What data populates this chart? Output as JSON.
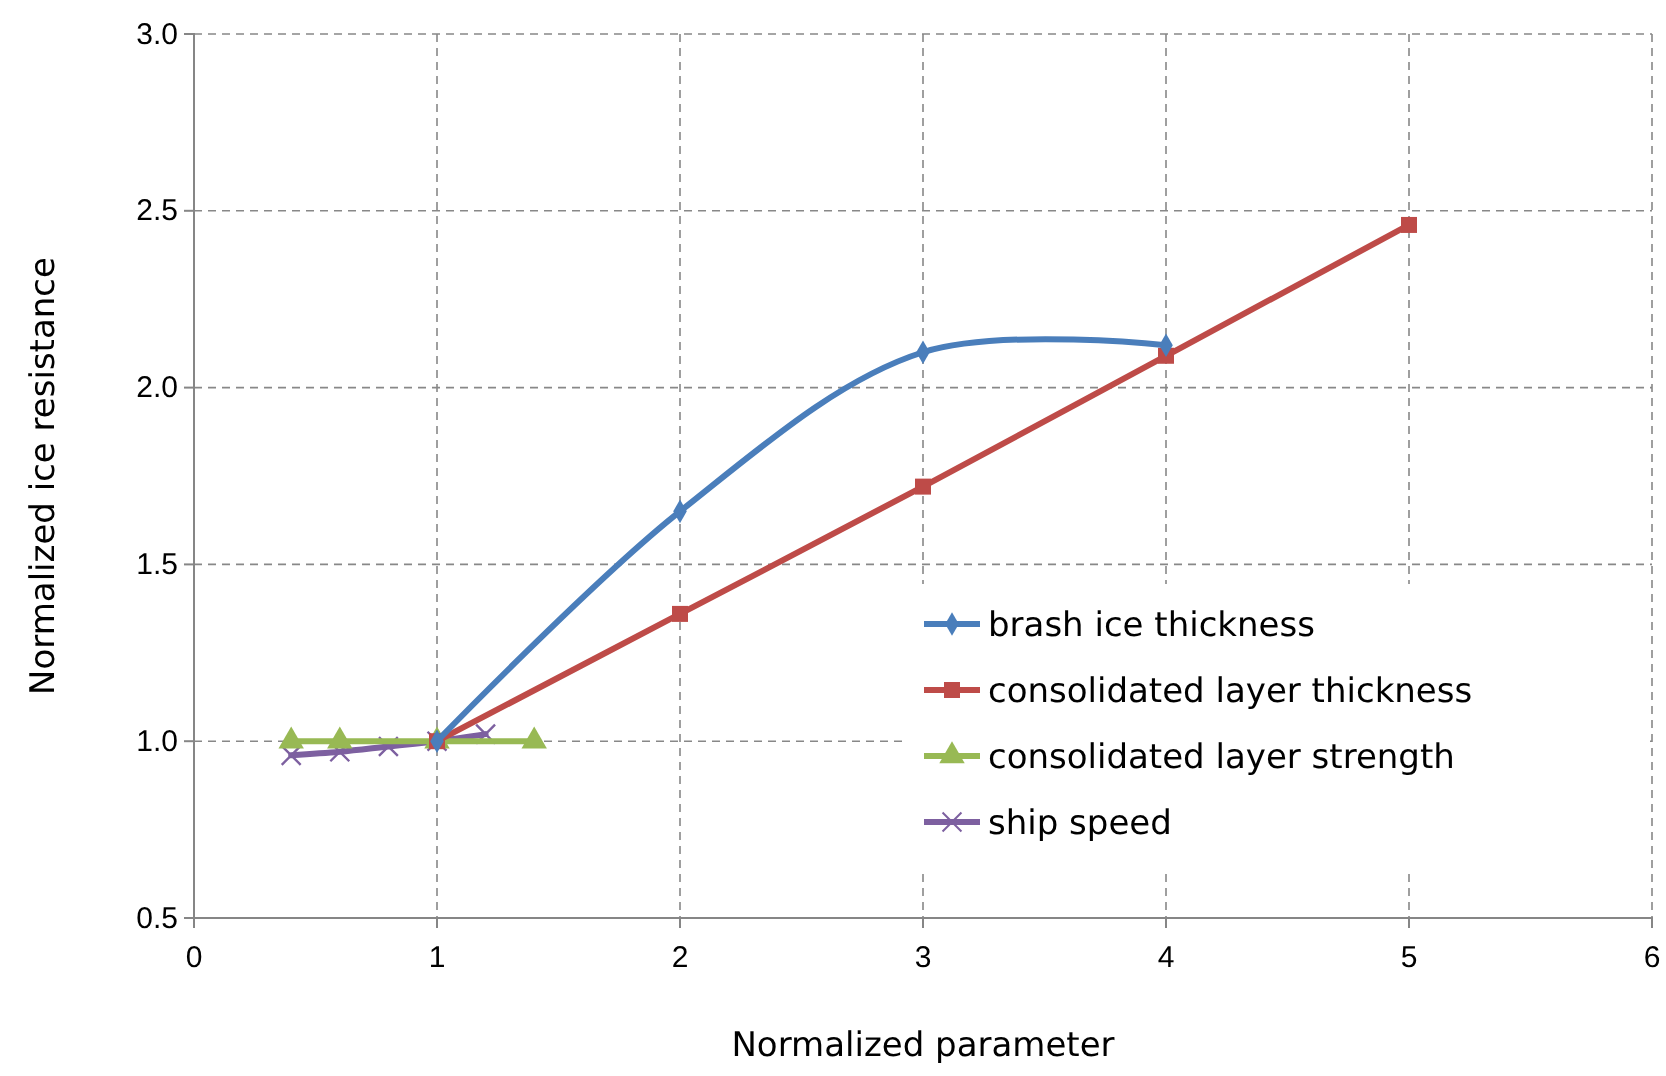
{
  "chart_data": {
    "type": "line",
    "xlabel": "Normalized parameter",
    "ylabel": "Normalized ice resistance",
    "xlim": [
      0,
      6
    ],
    "xticks": [
      0,
      1,
      2,
      3,
      4,
      5,
      6
    ],
    "ylim": [
      0.5,
      3
    ],
    "yticks": [
      {
        "value": 0.5,
        "label": "0.5"
      },
      {
        "value": 1,
        "label": "1.0"
      },
      {
        "value": 1.5,
        "label": "1.5"
      },
      {
        "value": 2,
        "label": "2.0"
      },
      {
        "value": 2.5,
        "label": "2.5"
      },
      {
        "value": 3,
        "label": "3.0"
      }
    ],
    "grid": true,
    "legend": "bottom right",
    "series": [
      {
        "name": "brash ice thickness",
        "color": "#4a7ebb",
        "marker": "diamond",
        "x": [
          1,
          2,
          3,
          4
        ],
        "values": [
          1.0,
          1.65,
          2.1,
          2.12
        ]
      },
      {
        "name": "consolidated layer thickness",
        "color": "#be4b48",
        "marker": "square",
        "x": [
          1,
          2,
          3,
          4,
          5
        ],
        "values": [
          1.0,
          1.36,
          1.72,
          2.09,
          2.46
        ]
      },
      {
        "name": "consolidated layer strength",
        "color": "#98b954",
        "marker": "triangle",
        "x": [
          0.4,
          0.6,
          1.0,
          1.4
        ],
        "values": [
          1.0,
          1.0,
          1.0,
          1.0
        ]
      },
      {
        "name": "ship speed",
        "color": "#7d60a0",
        "marker": "cross",
        "x": [
          0.4,
          0.6,
          0.8,
          1.0,
          1.2
        ],
        "values": [
          0.96,
          0.97,
          0.985,
          1.0,
          1.02
        ]
      }
    ]
  }
}
